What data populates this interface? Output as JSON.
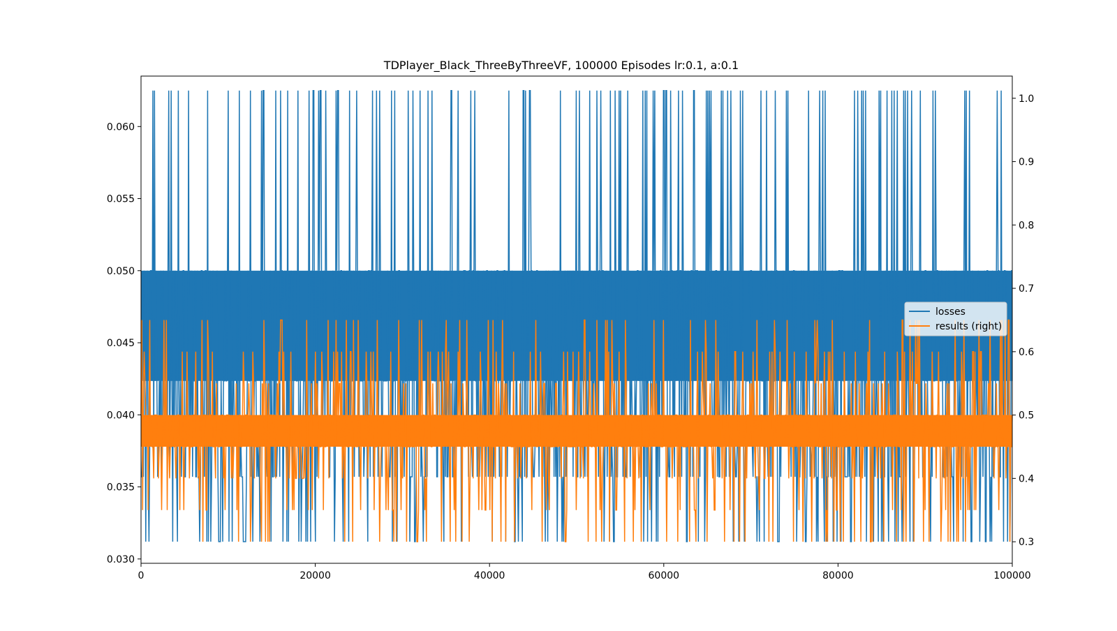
{
  "chart_data": {
    "type": "line",
    "title": "TDPlayer_Black_ThreeByThreeVF, 100000 Episodes lr:0.1, a:0.1",
    "xlabel": "",
    "ylabel": "",
    "y2label": "",
    "xlim": [
      0,
      100000
    ],
    "ylim": [
      0.0297,
      0.0635
    ],
    "y2lim": [
      0.266,
      1.035
    ],
    "x_ticks": [
      0,
      20000,
      40000,
      60000,
      80000,
      100000
    ],
    "x_tick_labels": [
      "0",
      "20000",
      "40000",
      "60000",
      "80000",
      "100000"
    ],
    "y_ticks": [
      0.03,
      0.035,
      0.04,
      0.045,
      0.05,
      0.055,
      0.06
    ],
    "y_tick_labels": [
      "0.030",
      "0.035",
      "0.040",
      "0.045",
      "0.050",
      "0.055",
      "0.060"
    ],
    "y2_ticks": [
      0.3,
      0.4,
      0.5,
      0.6,
      0.7,
      0.8,
      0.9,
      1.0
    ],
    "y2_tick_labels": [
      "0.3",
      "0.4",
      "0.5",
      "0.6",
      "0.7",
      "0.8",
      "0.9",
      "1.0"
    ],
    "grid": false,
    "legend_position": "center-right",
    "series": [
      {
        "name": "losses",
        "axis": "left",
        "color": "#1f77b4",
        "band": [
          0.04235,
          0.05
        ],
        "values": [
          0.0312,
          0.0357,
          0.0379,
          0.0625,
          0.0357
        ]
      },
      {
        "name": "results (right)",
        "axis": "right",
        "color": "#ff7f0e",
        "band": [
          0.45,
          0.5
        ],
        "values": [
          0.3,
          0.35,
          0.4,
          0.45,
          0.5,
          0.55,
          0.6,
          0.65
        ]
      }
    ],
    "legend": [
      "losses",
      "results (right)"
    ]
  }
}
